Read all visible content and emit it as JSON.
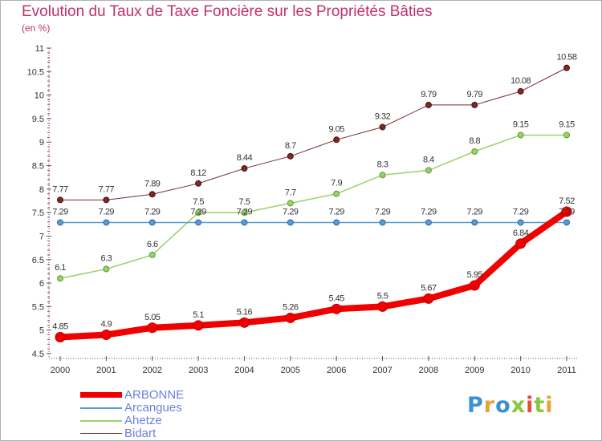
{
  "title": "Evolution du Taux de Taxe Foncière sur les Propriétés Bâties",
  "unit_label": "(en %)",
  "logo": {
    "letters": [
      "P",
      "r",
      "o",
      "x",
      "i",
      "t",
      "i"
    ],
    "colors": [
      "#3a8fd6",
      "#e8a23a",
      "#3a8fd6",
      "#8bc63f",
      "#e64a3c",
      "#8bc63f",
      "#e8a23a"
    ]
  },
  "chart_data": {
    "type": "line",
    "title": "Evolution du Taux de Taxe Foncière sur les Propriétés Bâties",
    "ylabel": "(en %)",
    "categories": [
      "2000",
      "2001",
      "2002",
      "2003",
      "2004",
      "2005",
      "2006",
      "2007",
      "2008",
      "2009",
      "2010",
      "2011"
    ],
    "ylim": [
      4.5,
      11
    ],
    "yticks": [
      "4.5",
      "5",
      "5.5",
      "6",
      "6.5",
      "7",
      "7.5",
      "8",
      "8.5",
      "9",
      "9.5",
      "10",
      "10.5",
      "11"
    ],
    "grid": false,
    "legend_position": "bottom-left",
    "series": [
      {
        "name": "ARBONNE",
        "color": "#f00000",
        "values": [
          4.85,
          4.9,
          5.05,
          5.1,
          5.16,
          5.26,
          5.45,
          5.5,
          5.67,
          5.95,
          6.84,
          7.52
        ],
        "labels": [
          "4.85",
          "4.9",
          "5.05",
          "5.1",
          "5.16",
          "5.26",
          "5.45",
          "5.5",
          "5.67",
          "5.95",
          "6.84",
          "7.52"
        ]
      },
      {
        "name": "Arcangues",
        "color": "#5b9bd5",
        "values": [
          7.29,
          7.29,
          7.29,
          7.29,
          7.29,
          7.29,
          7.29,
          7.29,
          7.29,
          7.29,
          7.29,
          7.29
        ],
        "labels": [
          "7.29",
          "7.29",
          "7.29",
          "7.29",
          "7.29",
          "7.29",
          "7.29",
          "7.29",
          "7.29",
          "7.29",
          "7.29",
          "7.29"
        ]
      },
      {
        "name": "Ahetze",
        "color": "#99d16a",
        "values": [
          6.1,
          6.3,
          6.6,
          7.5,
          7.5,
          7.7,
          7.9,
          8.3,
          8.4,
          8.8,
          9.15,
          9.15
        ],
        "labels": [
          "6.1",
          "6.3",
          "6.6",
          "7.5",
          "7.5",
          "7.7",
          "7.9",
          "8.3",
          "8.4",
          "8.8",
          "9.15",
          "9.15"
        ]
      },
      {
        "name": "Bidart",
        "color": "#7a2a2a",
        "values": [
          7.77,
          7.77,
          7.89,
          8.12,
          8.44,
          8.7,
          9.05,
          9.32,
          9.79,
          9.79,
          10.08,
          10.58
        ],
        "labels": [
          "7.77",
          "7.77",
          "7.89",
          "8.12",
          "8.44",
          "8.7",
          "9.05",
          "9.32",
          "9.79",
          "9.79",
          "10.08",
          "10.58"
        ]
      }
    ]
  }
}
